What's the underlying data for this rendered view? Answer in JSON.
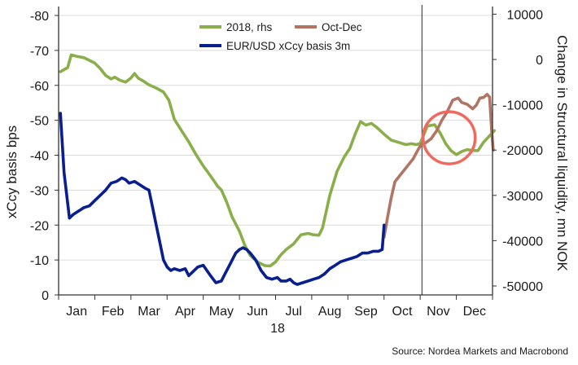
{
  "chart_data": {
    "type": "line",
    "xlabel": "18",
    "ylabel_left": "xCcy basis bps",
    "ylabel_right": "Change in Structural liquidity, mn NOK",
    "source": "Source: Nordea Markets and Macrobond",
    "x_ticks": [
      "Jan",
      "Feb",
      "Mar",
      "Apr",
      "May",
      "Jun",
      "Jul",
      "Aug",
      "Sep",
      "Oct",
      "Nov",
      "Dec"
    ],
    "y_left": {
      "min": 0,
      "max": -80,
      "ticks": [
        0,
        -10,
        -20,
        -30,
        -40,
        -50,
        -60,
        -70,
        -80
      ],
      "inverted": true
    },
    "y_right": {
      "min": -50000,
      "max": 10000,
      "ticks": [
        10000,
        0,
        -10000,
        -20000,
        -30000,
        -40000,
        -50000
      ]
    },
    "legend": [
      {
        "label": "2018, rhs",
        "color": "#8aaf4a"
      },
      {
        "label": "Oct-Dec",
        "color": "#b07565"
      },
      {
        "label": "EUR/USD xCcy basis 3m",
        "color": "#0a1f8f"
      }
    ],
    "vline_month": 10.05,
    "circle_annotation": {
      "month": 10.8,
      "y_left": -45,
      "color": "#f0695f"
    },
    "series": [
      {
        "name": "2018, rhs",
        "color": "#8aaf4a",
        "axis": "right",
        "points": [
          [
            0.05,
            -2700
          ],
          [
            0.25,
            -1800
          ],
          [
            0.35,
            1000
          ],
          [
            0.5,
            700
          ],
          [
            0.7,
            400
          ],
          [
            0.85,
            -200
          ],
          [
            1.0,
            -800
          ],
          [
            1.15,
            -2000
          ],
          [
            1.3,
            -3500
          ],
          [
            1.45,
            -4300
          ],
          [
            1.55,
            -3900
          ],
          [
            1.7,
            -4600
          ],
          [
            1.85,
            -5000
          ],
          [
            2.0,
            -4100
          ],
          [
            2.1,
            -3100
          ],
          [
            2.2,
            -4100
          ],
          [
            2.35,
            -4800
          ],
          [
            2.5,
            -5600
          ],
          [
            2.7,
            -6300
          ],
          [
            2.9,
            -7200
          ],
          [
            3.05,
            -9000
          ],
          [
            3.2,
            -13200
          ],
          [
            3.4,
            -15700
          ],
          [
            3.6,
            -18200
          ],
          [
            3.8,
            -21000
          ],
          [
            4.0,
            -23500
          ],
          [
            4.2,
            -25700
          ],
          [
            4.4,
            -28000
          ],
          [
            4.5,
            -28800
          ],
          [
            4.65,
            -31500
          ],
          [
            4.8,
            -34800
          ],
          [
            5.0,
            -37900
          ],
          [
            5.15,
            -41000
          ],
          [
            5.3,
            -43300
          ],
          [
            5.5,
            -44700
          ],
          [
            5.7,
            -45500
          ],
          [
            5.85,
            -45600
          ],
          [
            6.0,
            -44700
          ],
          [
            6.15,
            -43100
          ],
          [
            6.3,
            -41900
          ],
          [
            6.5,
            -40700
          ],
          [
            6.7,
            -38700
          ],
          [
            6.9,
            -38400
          ],
          [
            7.05,
            -38700
          ],
          [
            7.2,
            -38800
          ],
          [
            7.3,
            -37200
          ],
          [
            7.5,
            -30000
          ],
          [
            7.7,
            -24700
          ],
          [
            7.9,
            -21500
          ],
          [
            8.05,
            -19700
          ],
          [
            8.2,
            -16500
          ],
          [
            8.35,
            -13700
          ],
          [
            8.5,
            -14500
          ],
          [
            8.65,
            -14100
          ],
          [
            8.8,
            -15000
          ],
          [
            9.0,
            -16500
          ],
          [
            9.2,
            -17800
          ],
          [
            9.4,
            -18300
          ],
          [
            9.6,
            -18800
          ],
          [
            9.75,
            -18600
          ],
          [
            9.9,
            -18800
          ],
          [
            10.0,
            -18500
          ],
          [
            10.2,
            -14700
          ],
          [
            10.4,
            -14400
          ],
          [
            10.55,
            -16200
          ],
          [
            10.7,
            -18500
          ],
          [
            10.85,
            -20100
          ],
          [
            11.0,
            -21000
          ],
          [
            11.15,
            -20300
          ],
          [
            11.3,
            -19900
          ],
          [
            11.45,
            -20100
          ],
          [
            11.6,
            -20100
          ],
          [
            11.75,
            -18300
          ],
          [
            11.9,
            -17000
          ],
          [
            12.05,
            -15700
          ]
        ]
      },
      {
        "name": "Oct-Dec",
        "color": "#b07565",
        "axis": "right",
        "points": [
          [
            9.0,
            -39200
          ],
          [
            9.1,
            -34700
          ],
          [
            9.2,
            -30500
          ],
          [
            9.3,
            -27000
          ],
          [
            9.45,
            -25500
          ],
          [
            9.6,
            -24000
          ],
          [
            9.8,
            -22000
          ],
          [
            9.95,
            -19800
          ],
          [
            10.05,
            -18500
          ],
          [
            10.15,
            -18400
          ],
          [
            10.3,
            -17500
          ],
          [
            10.45,
            -15800
          ],
          [
            10.6,
            -13400
          ],
          [
            10.75,
            -11500
          ],
          [
            10.9,
            -9000
          ],
          [
            11.05,
            -8500
          ],
          [
            11.15,
            -9500
          ],
          [
            11.3,
            -9900
          ],
          [
            11.45,
            -10900
          ],
          [
            11.55,
            -10100
          ],
          [
            11.65,
            -8500
          ],
          [
            11.75,
            -8400
          ],
          [
            11.85,
            -7700
          ],
          [
            11.92,
            -8300
          ],
          [
            11.98,
            -16100
          ],
          [
            12.02,
            -20000
          ]
        ]
      },
      {
        "name": "EUR/USD xCcy basis 3m",
        "color": "#0a1f8f",
        "axis": "left",
        "points": [
          [
            0.05,
            -52
          ],
          [
            0.15,
            -35
          ],
          [
            0.3,
            -22
          ],
          [
            0.4,
            -23
          ],
          [
            0.55,
            -24
          ],
          [
            0.7,
            -25
          ],
          [
            0.85,
            -25.5
          ],
          [
            1.0,
            -27
          ],
          [
            1.15,
            -28.5
          ],
          [
            1.3,
            -30
          ],
          [
            1.45,
            -32
          ],
          [
            1.6,
            -32.5
          ],
          [
            1.75,
            -33.5
          ],
          [
            1.85,
            -33
          ],
          [
            1.95,
            -32
          ],
          [
            2.1,
            -32.5
          ],
          [
            2.25,
            -31.5
          ],
          [
            2.4,
            -30.5
          ],
          [
            2.5,
            -30
          ],
          [
            2.6,
            -25
          ],
          [
            2.7,
            -20
          ],
          [
            2.8,
            -15
          ],
          [
            2.9,
            -10
          ],
          [
            3.0,
            -8
          ],
          [
            3.1,
            -7
          ],
          [
            3.2,
            -7.5
          ],
          [
            3.35,
            -7
          ],
          [
            3.5,
            -7.5
          ],
          [
            3.6,
            -5.5
          ],
          [
            3.7,
            -6.5
          ],
          [
            3.85,
            -8
          ],
          [
            4.0,
            -8.5
          ],
          [
            4.1,
            -7
          ],
          [
            4.2,
            -5.5
          ],
          [
            4.35,
            -3.5
          ],
          [
            4.5,
            -4
          ],
          [
            4.6,
            -6
          ],
          [
            4.75,
            -9
          ],
          [
            4.9,
            -12
          ],
          [
            5.0,
            -13
          ],
          [
            5.1,
            -13.5
          ],
          [
            5.2,
            -13
          ],
          [
            5.3,
            -12
          ],
          [
            5.45,
            -10
          ],
          [
            5.6,
            -7
          ],
          [
            5.75,
            -5
          ],
          [
            5.9,
            -4.5
          ],
          [
            6.05,
            -5
          ],
          [
            6.15,
            -4
          ],
          [
            6.3,
            -4
          ],
          [
            6.4,
            -4.5
          ],
          [
            6.5,
            -3.5
          ],
          [
            6.6,
            -3
          ],
          [
            6.75,
            -3.5
          ],
          [
            6.9,
            -4
          ],
          [
            7.05,
            -4.5
          ],
          [
            7.2,
            -5
          ],
          [
            7.35,
            -6
          ],
          [
            7.5,
            -7.5
          ],
          [
            7.65,
            -8.5
          ],
          [
            7.8,
            -9.5
          ],
          [
            7.95,
            -10
          ],
          [
            8.1,
            -10.5
          ],
          [
            8.25,
            -11
          ],
          [
            8.4,
            -12
          ],
          [
            8.55,
            -12
          ],
          [
            8.7,
            -12.5
          ],
          [
            8.85,
            -12.5
          ],
          [
            8.95,
            -13
          ],
          [
            9.0,
            -20
          ]
        ]
      }
    ]
  }
}
